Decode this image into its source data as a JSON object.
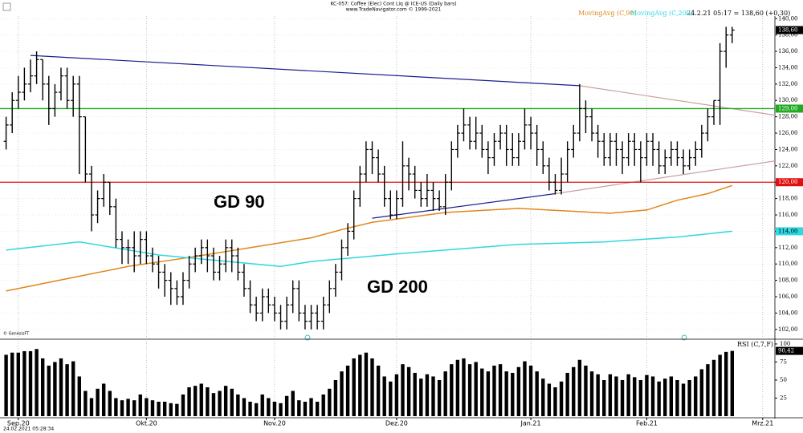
{
  "header": {
    "title": "KC-057: Coffee (Elec) Cont Liq @ ICE-US  (Daily bars)",
    "subtitle": "www.TradeNavigator.com © 1999-2021",
    "info": "24.2.21 05:17 = 138,60 (+0,30)"
  },
  "chart_data": [
    {
      "type": "ohlc",
      "color": "#000000",
      "grid": true,
      "xlim": [
        -1,
        126
      ],
      "xticks": [
        {
          "value": 2,
          "label": "Sep.20"
        },
        {
          "value": 23,
          "label": "Okt.20"
        },
        {
          "value": 44,
          "label": "Nov.20"
        },
        {
          "value": 64,
          "label": "Dez.20"
        },
        {
          "value": 86,
          "label": "Jan.21"
        },
        {
          "value": 105,
          "label": "Feb.21"
        },
        {
          "value": 124,
          "label": "Mrz.21"
        }
      ],
      "ylim": [
        101.1,
        141.3
      ],
      "yticks": [
        {
          "value": 102,
          "label": "102,00"
        },
        {
          "value": 104,
          "label": "104,00"
        },
        {
          "value": 106,
          "label": "106,00"
        },
        {
          "value": 108,
          "label": "108,00"
        },
        {
          "value": 110,
          "label": "110,00"
        },
        {
          "value": 112,
          "label": "112,00"
        },
        {
          "value": 114,
          "label": "114,00"
        },
        {
          "value": 116,
          "label": "116,00"
        },
        {
          "value": 118,
          "label": "118,00"
        },
        {
          "value": 120,
          "label": "120,00"
        },
        {
          "value": 122,
          "label": "122,00"
        },
        {
          "value": 124,
          "label": "124,00"
        },
        {
          "value": 126,
          "label": "126,00"
        },
        {
          "value": 128,
          "label": "128,00"
        },
        {
          "value": 130,
          "label": "130,00"
        },
        {
          "value": 132,
          "label": "132,00"
        },
        {
          "value": 134,
          "label": "134,00"
        },
        {
          "value": 136,
          "label": "136,00"
        },
        {
          "value": 138,
          "label": "138,00"
        },
        {
          "value": 140,
          "label": "140,00"
        }
      ],
      "open": [
        125,
        127,
        130,
        131,
        132,
        133,
        135,
        132,
        129,
        131,
        133,
        130,
        132,
        128,
        121,
        116,
        118,
        120,
        117,
        113,
        112,
        112,
        111,
        113,
        111,
        110,
        109,
        108,
        107,
        106,
        108,
        110,
        111,
        112,
        111,
        109,
        110,
        112,
        111,
        109,
        107,
        105,
        104,
        106,
        105,
        104,
        103,
        105,
        107,
        104,
        103,
        104,
        103,
        105,
        107,
        109,
        112,
        114,
        118,
        121,
        124,
        123,
        121,
        118,
        116,
        118,
        122,
        121,
        119,
        118,
        119,
        118,
        117,
        120,
        124,
        126,
        127,
        125,
        126,
        124,
        123,
        125,
        126,
        124,
        123,
        125,
        127,
        126,
        124,
        122,
        120,
        119,
        121,
        124,
        126,
        129,
        128,
        126,
        125,
        123,
        125,
        124,
        123,
        125,
        124,
        123,
        125,
        124,
        122,
        123,
        124,
        123,
        122,
        123,
        124,
        126,
        128,
        130,
        136,
        138
      ],
      "high": [
        128,
        131,
        133,
        134,
        135,
        136,
        135,
        133,
        132,
        134,
        134,
        133,
        133,
        128,
        122,
        119,
        121,
        120,
        118,
        114,
        113,
        114,
        114,
        114,
        112,
        111,
        110,
        109,
        108,
        109,
        111,
        112,
        113,
        113,
        112,
        111,
        113,
        113,
        112,
        110,
        108,
        106,
        107,
        107,
        106,
        105,
        106,
        108,
        108,
        105,
        105,
        105,
        106,
        108,
        110,
        113,
        115,
        119,
        122,
        125,
        125,
        124,
        122,
        119,
        119,
        125,
        123,
        122,
        120,
        121,
        120,
        119,
        121,
        125,
        127,
        129,
        128,
        128,
        127,
        125,
        126,
        127,
        127,
        126,
        126,
        129,
        128,
        127,
        125,
        123,
        121,
        123,
        125,
        127,
        132,
        130,
        129,
        127,
        126,
        126,
        126,
        125,
        126,
        126,
        125,
        126,
        126,
        125,
        124,
        125,
        125,
        124,
        124,
        125,
        127,
        129,
        130,
        137,
        139,
        139
      ],
      "low": [
        124,
        126,
        129,
        130,
        131,
        132,
        130,
        127,
        128,
        130,
        129,
        128,
        121,
        120,
        114,
        115,
        117,
        116,
        112,
        110,
        110,
        109,
        110,
        110,
        109,
        107,
        106,
        105,
        105,
        105,
        107,
        109,
        110,
        109,
        108,
        108,
        109,
        109,
        108,
        106,
        104,
        103,
        103,
        104,
        103,
        102,
        102,
        104,
        103,
        102,
        102,
        102,
        102,
        104,
        106,
        108,
        111,
        113,
        117,
        120,
        121,
        120,
        117,
        115.5,
        115.5,
        117,
        119,
        118,
        117,
        117,
        116.5,
        116.5,
        116,
        119,
        123,
        125,
        124,
        124,
        123,
        121,
        122,
        124,
        122,
        122,
        122,
        124,
        124,
        122,
        121,
        119,
        118.5,
        118.5,
        120,
        123,
        125,
        126,
        125,
        123,
        122,
        122,
        122,
        121,
        122,
        122,
        120,
        122,
        122,
        121,
        121,
        122,
        122,
        121,
        121.5,
        122,
        123,
        125,
        127,
        127,
        134,
        137
      ],
      "close": [
        127,
        130,
        131,
        132,
        133,
        135,
        132,
        129,
        131,
        133,
        130,
        132,
        128,
        121,
        116,
        118,
        120,
        117,
        113,
        112,
        112,
        111,
        113,
        111,
        110,
        109,
        108,
        107,
        106,
        108,
        110,
        111,
        112,
        111,
        109,
        110,
        112,
        111,
        109,
        107,
        105,
        104,
        106,
        105,
        104,
        103,
        105,
        107,
        104,
        103,
        104,
        103,
        105,
        107,
        109,
        112,
        114,
        118,
        121,
        124,
        123,
        121,
        118,
        116,
        118,
        122,
        121,
        119,
        118,
        119,
        118,
        117,
        120,
        124,
        126,
        127,
        125,
        126,
        124,
        123,
        125,
        126,
        124,
        123,
        125,
        127,
        126,
        124,
        122,
        120,
        119,
        121,
        124,
        126,
        129,
        128,
        126,
        125,
        123,
        125,
        124,
        123,
        125,
        124,
        123,
        125,
        124,
        122,
        123,
        124,
        123,
        122,
        123,
        124,
        126,
        128,
        130,
        136,
        138,
        138.6
      ],
      "last_price": {
        "value": 138.6,
        "label": "138,60"
      },
      "moving_averages": [
        {
          "name": "MovingAvg (C,90)",
          "color": "#e0861a",
          "x": [
            0,
            12,
            20,
            30,
            40,
            50,
            55,
            60,
            72,
            84,
            99,
            105,
            110,
            115,
            119
          ],
          "values": [
            106.7,
            108.5,
            109.7,
            110.8,
            112,
            113.2,
            114.2,
            115.1,
            116.3,
            116.8,
            116.2,
            116.6,
            117.8,
            118.6,
            119.6
          ]
        },
        {
          "name": "MovingAvg (C,200)",
          "color": "#2ed8e0",
          "x": [
            0,
            12,
            25,
            45,
            50,
            65,
            84,
            98,
            110,
            119
          ],
          "values": [
            111.7,
            112.7,
            111.1,
            109.7,
            110.3,
            111.3,
            112.4,
            112.7,
            113.3,
            114.0
          ],
          "end_label": "114,00"
        }
      ],
      "trend_lines": [
        {
          "color": "#1c1c90",
          "x": [
            4,
            94
          ],
          "values": [
            135.5,
            131.8
          ]
        },
        {
          "color": "#c9a0a0",
          "x": [
            94,
            126
          ],
          "values": [
            131.8,
            128.2
          ]
        },
        {
          "color": "#1c1c90",
          "x": [
            60,
            90
          ],
          "values": [
            115.6,
            118.6
          ]
        },
        {
          "color": "#c9a0a0",
          "x": [
            90,
            126
          ],
          "values": [
            118.6,
            122.6
          ]
        }
      ],
      "levels": [
        {
          "value": 129,
          "label": "129,00",
          "color": "#1faa1f"
        },
        {
          "value": 120,
          "label": "120,00",
          "color": "#e01010"
        }
      ],
      "annotations": [
        {
          "text": "GD 90",
          "color": "#e0861a"
        },
        {
          "text": "GD 200",
          "color": "#2ed8e0"
        }
      ]
    },
    {
      "type": "bar",
      "title": "RSI (C,7,F)",
      "color": "#000000",
      "ylim": [
        0,
        104.4
      ],
      "yticks": [
        25,
        50,
        75,
        100
      ],
      "values": [
        85,
        88,
        88,
        90,
        90,
        93,
        80,
        70,
        75,
        80,
        72,
        76,
        55,
        35,
        25,
        38,
        45,
        35,
        25,
        22,
        24,
        22,
        30,
        25,
        22,
        20,
        20,
        18,
        17,
        30,
        40,
        42,
        45,
        40,
        32,
        35,
        42,
        38,
        30,
        25,
        20,
        18,
        30,
        25,
        20,
        18,
        28,
        35,
        22,
        20,
        25,
        20,
        30,
        38,
        50,
        62,
        70,
        80,
        85,
        88,
        80,
        70,
        55,
        48,
        58,
        72,
        68,
        60,
        52,
        58,
        55,
        50,
        62,
        72,
        78,
        80,
        72,
        75,
        66,
        62,
        70,
        72,
        62,
        60,
        68,
        76,
        70,
        62,
        52,
        45,
        40,
        48,
        60,
        68,
        78,
        70,
        62,
        58,
        50,
        58,
        55,
        50,
        58,
        54,
        50,
        57,
        55,
        48,
        52,
        55,
        50,
        45,
        50,
        55,
        65,
        72,
        78,
        85,
        89,
        90.42
      ],
      "last_value_label": "90,42"
    }
  ],
  "footer": {
    "source": "© GenesisFT",
    "timestamp": "24.02.2021 05:28:34"
  }
}
